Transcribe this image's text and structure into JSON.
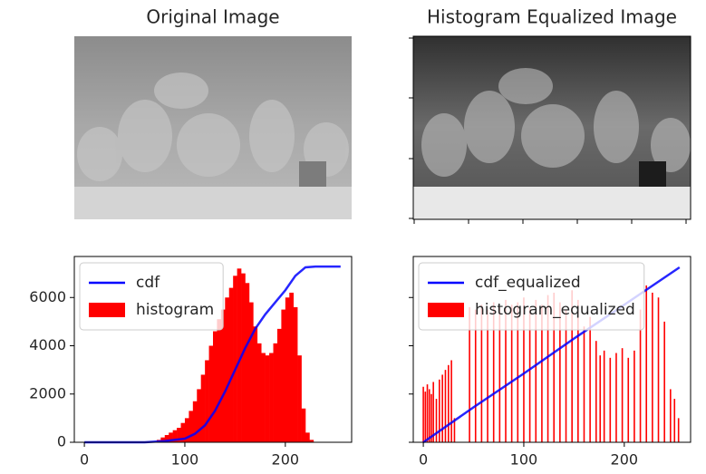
{
  "chart_data": [
    {
      "type": "image",
      "title": "Original Image"
    },
    {
      "type": "image",
      "title": "Histogram Equalized Image"
    },
    {
      "type": "plot",
      "xlim": [
        -10,
        266
      ],
      "ylim": [
        0,
        7700
      ],
      "xticks": [
        0,
        100,
        200
      ],
      "yticks": [
        0,
        2000,
        4000,
        6000
      ],
      "ytick_labels": true,
      "legend": "upper left",
      "series": [
        {
          "name": "cdf",
          "type": "line",
          "color": "#0000ff",
          "x": [
            0,
            60,
            80,
            100,
            110,
            120,
            130,
            140,
            150,
            160,
            170,
            180,
            190,
            200,
            210,
            220,
            230,
            255
          ],
          "values": [
            0,
            0,
            50,
            150,
            350,
            700,
            1300,
            2100,
            3000,
            3900,
            4700,
            5300,
            5800,
            6300,
            6900,
            7250,
            7280,
            7280
          ]
        },
        {
          "name": "histogram",
          "type": "histogram",
          "color": "#ff0000",
          "bins": [
            0,
            4,
            8,
            12,
            16,
            20,
            24,
            28,
            32,
            36,
            40,
            44,
            48,
            52,
            56,
            60,
            64,
            68,
            72,
            76,
            80,
            84,
            88,
            92,
            96,
            100,
            104,
            108,
            112,
            116,
            120,
            124,
            128,
            132,
            136,
            140,
            144,
            148,
            152,
            156,
            160,
            164,
            168,
            172,
            176,
            180,
            184,
            188,
            192,
            196,
            200,
            204,
            208,
            212,
            216,
            220,
            224,
            228,
            232,
            236,
            240,
            244,
            248,
            252,
            256
          ],
          "values": [
            0,
            0,
            0,
            0,
            0,
            0,
            0,
            0,
            0,
            0,
            0,
            0,
            0,
            0,
            0,
            0,
            0,
            0,
            100,
            200,
            300,
            400,
            500,
            600,
            800,
            1000,
            1300,
            1700,
            2200,
            2800,
            3400,
            4000,
            4600,
            5100,
            5500,
            6000,
            6400,
            6900,
            7200,
            7000,
            6600,
            5800,
            4800,
            4100,
            3700,
            3600,
            3700,
            4100,
            4700,
            5500,
            6000,
            6200,
            5600,
            3600,
            1400,
            400,
            100,
            0,
            0,
            0,
            0,
            0,
            0,
            0
          ]
        }
      ]
    },
    {
      "type": "plot",
      "xlim": [
        -10,
        266
      ],
      "ylim": [
        0,
        7700
      ],
      "xticks": [
        0,
        100,
        200
      ],
      "yticks": [
        0,
        2000,
        4000,
        6000
      ],
      "ytick_labels": false,
      "legend": "upper left",
      "series": [
        {
          "name": "cdf_equalized",
          "type": "line",
          "color": "#0000ff",
          "x": [
            0,
            50,
            100,
            150,
            200,
            255
          ],
          "values": [
            0,
            1450,
            2850,
            4300,
            5700,
            7250
          ]
        },
        {
          "name": "histogram_equalized",
          "type": "bar",
          "color": "#ff0000",
          "x": [
            0,
            2,
            4,
            6,
            8,
            10,
            13,
            16,
            19,
            22,
            25,
            28,
            31,
            46,
            52,
            58,
            64,
            70,
            76,
            82,
            88,
            94,
            100,
            106,
            112,
            118,
            124,
            130,
            136,
            142,
            148,
            154,
            160,
            166,
            172,
            176,
            180,
            186,
            192,
            198,
            204,
            210,
            216,
            222,
            228,
            234,
            240,
            246,
            250,
            254
          ],
          "values": [
            2300,
            2100,
            2400,
            2200,
            2000,
            2500,
            1800,
            2600,
            2800,
            3000,
            3200,
            3400,
            1000,
            5600,
            5500,
            5700,
            5500,
            5800,
            5600,
            5900,
            5700,
            5800,
            6000,
            5600,
            5900,
            5700,
            6100,
            6200,
            5800,
            5500,
            6300,
            5900,
            4800,
            5200,
            4200,
            3600,
            3800,
            3500,
            3700,
            3900,
            3500,
            3800,
            5500,
            6500,
            6200,
            6000,
            5000,
            2200,
            1800,
            1000
          ]
        }
      ]
    }
  ]
}
